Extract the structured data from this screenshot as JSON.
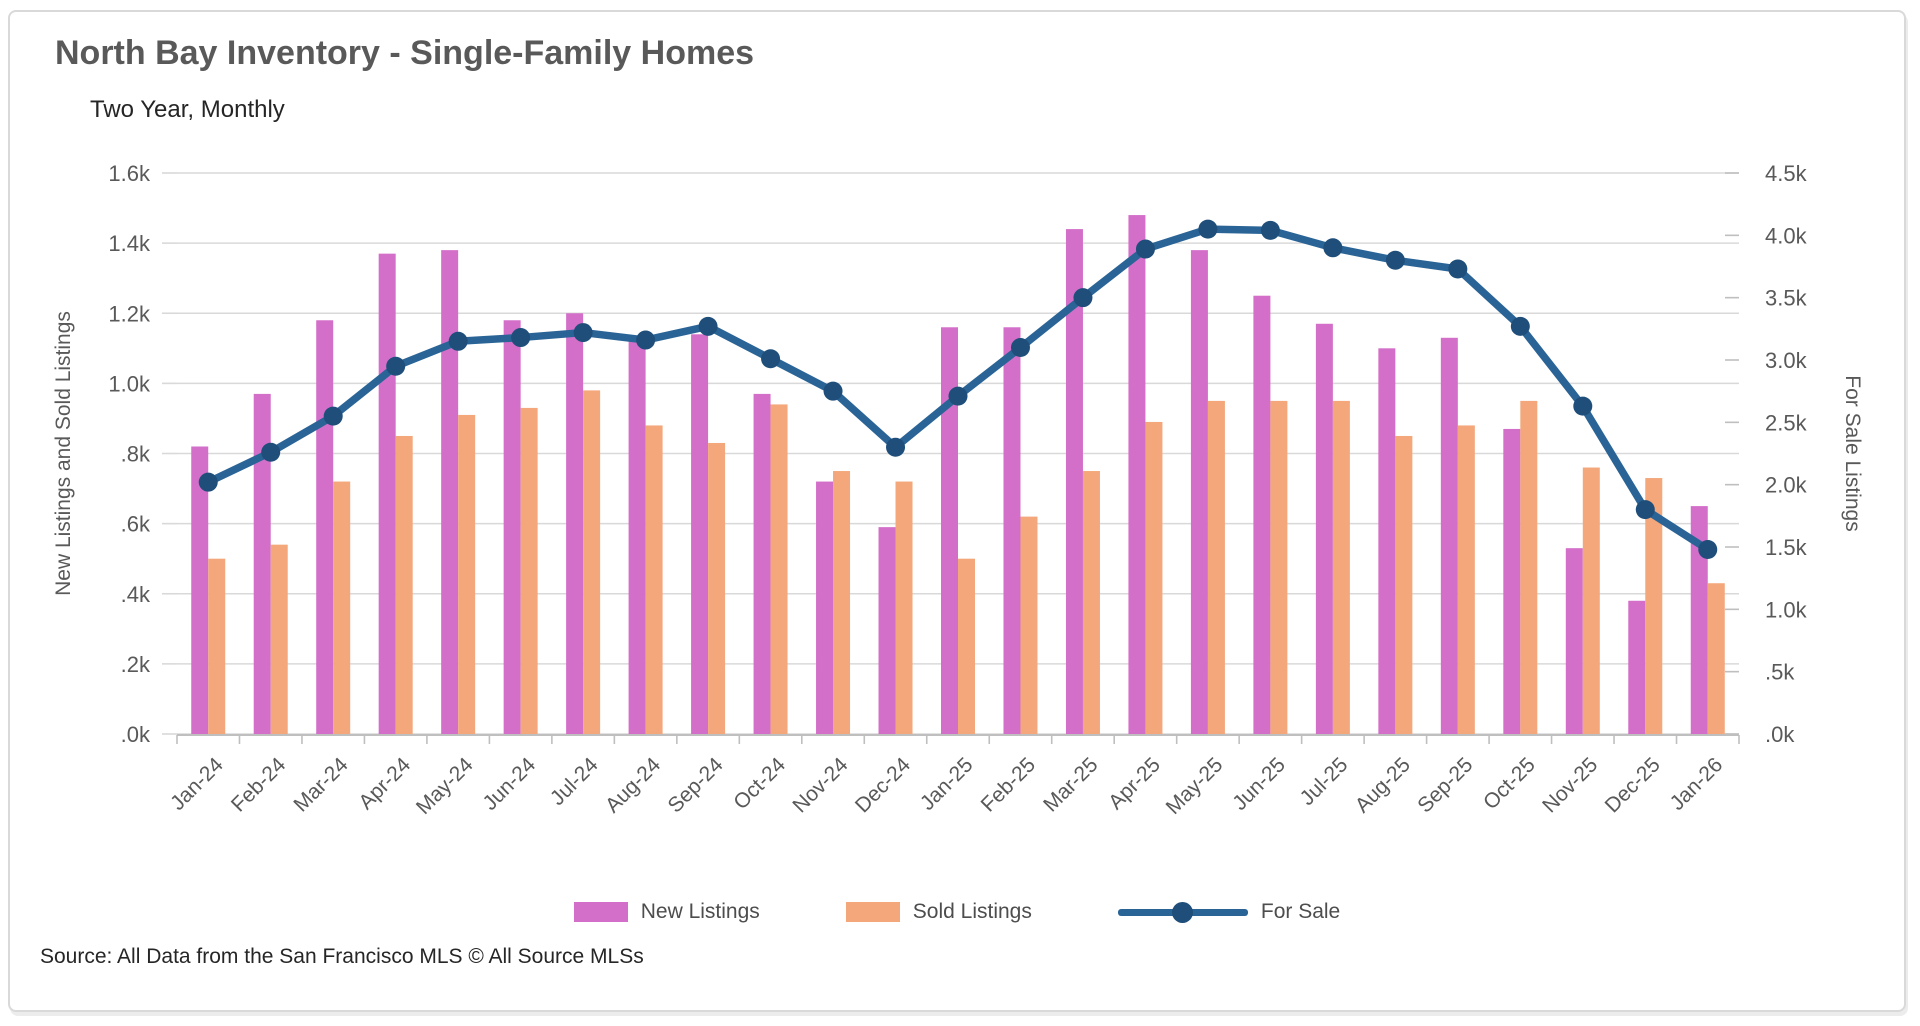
{
  "card": {
    "title": "North Bay Inventory - Single-Family Homes",
    "subtitle": "Two Year, Monthly",
    "source": "Source: All Data from the San Francisco MLS © All Source MLSs"
  },
  "legend": [
    {
      "label": "New Listings",
      "type": "bar",
      "color": "#d36fc9"
    },
    {
      "label": "Sold Listings",
      "type": "bar",
      "color": "#f3a77b"
    },
    {
      "label": "For Sale",
      "type": "line",
      "color": "#2a6496",
      "marker_color": "#1e4e79"
    }
  ],
  "chart_data": {
    "type": "bar+line",
    "title": "North Bay Inventory - Single-Family Homes",
    "subtitle": "Two Year, Monthly",
    "categories": [
      "Jan-24",
      "Feb-24",
      "Mar-24",
      "Apr-24",
      "May-24",
      "Jun-24",
      "Jul-24",
      "Aug-24",
      "Sep-24",
      "Oct-24",
      "Nov-24",
      "Dec-24",
      "Jan-25",
      "Feb-25",
      "Mar-25",
      "Apr-25",
      "May-25",
      "Jun-25",
      "Jul-25",
      "Aug-25",
      "Sep-25",
      "Oct-25",
      "Nov-25",
      "Dec-25",
      "Jan-26"
    ],
    "units": "thousands of listings",
    "series": [
      {
        "name": "New Listings",
        "type": "bar",
        "axis": "left",
        "color": "#d36fc9",
        "values": [
          0.82,
          0.97,
          1.18,
          1.37,
          1.38,
          1.18,
          1.2,
          1.13,
          1.14,
          0.97,
          0.72,
          0.59,
          1.16,
          1.16,
          1.44,
          1.48,
          1.38,
          1.25,
          1.17,
          1.1,
          1.13,
          0.87,
          0.53,
          0.38,
          0.65
        ]
      },
      {
        "name": "Sold Listings",
        "type": "bar",
        "axis": "left",
        "color": "#f3a77b",
        "values": [
          0.5,
          0.54,
          0.72,
          0.85,
          0.91,
          0.93,
          0.98,
          0.88,
          0.83,
          0.94,
          0.75,
          0.72,
          0.5,
          0.62,
          0.75,
          0.89,
          0.95,
          0.95,
          0.95,
          0.85,
          0.88,
          0.95,
          0.76,
          0.73,
          0.43
        ]
      },
      {
        "name": "For Sale",
        "type": "line",
        "axis": "right",
        "color": "#2a6496",
        "marker_color": "#1e4e79",
        "values": [
          2.02,
          2.26,
          2.55,
          2.95,
          3.15,
          3.18,
          3.22,
          3.16,
          3.27,
          3.01,
          2.75,
          2.3,
          2.71,
          3.1,
          3.5,
          3.89,
          4.05,
          4.04,
          3.9,
          3.8,
          3.73,
          3.27,
          2.63,
          1.8,
          1.48
        ]
      }
    ],
    "left_axis": {
      "title": "New Listings and Sold Listings",
      "min": 0,
      "max": 1.6,
      "tick_labels": [
        "1.6k",
        "1.4k",
        "1.2k",
        "1.0k",
        ".8k",
        ".6k",
        ".4k",
        ".2k",
        ".0k"
      ]
    },
    "right_axis": {
      "title": "For Sale Listings",
      "min": 0,
      "max": 4.5,
      "tick_labels": [
        "4.5k",
        "4.0k",
        "3.5k",
        "3.0k",
        "2.5k",
        "2.0k",
        "1.5k",
        "1.0k",
        ".5k",
        ".0k"
      ]
    },
    "grid": true,
    "legend_position": "bottom",
    "colors": {
      "grid": "#d9d9d9",
      "axis": "#bfbfbf",
      "tick_text": "#595959"
    }
  }
}
